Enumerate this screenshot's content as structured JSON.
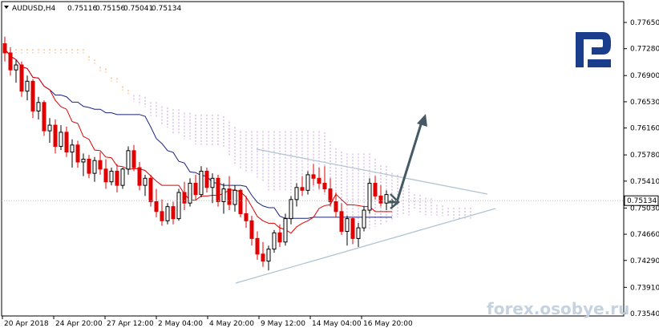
{
  "header": {
    "menu_icon": "triangle-down-icon",
    "symbol": "AUDUSD,H4",
    "open": "0.75116",
    "high": "0.75156",
    "low": "0.75041",
    "close": "0.75134"
  },
  "watermark": "forex.osobye.ru",
  "logo": {
    "icon": "broker-logo-icon",
    "color": "#1a3e8c"
  },
  "colors": {
    "bull": "#000000",
    "bear": "#e00000",
    "tenkan": "#e00000",
    "kijun": "#1a237e",
    "chikou": "#e00000",
    "cloud_bear": "#c9a0d8",
    "cloud_bull": "#f5a64c",
    "triangle": "#b0c4d2",
    "arrow": "#455a64",
    "watermark": "#c5d3e0",
    "price_label_bg": "#ffffff"
  },
  "chart_data": {
    "type": "candlestick",
    "title": "AUDUSD,H4",
    "y_axis_ticks": [
      "0.77650",
      "0.77280",
      "0.76900",
      "0.76530",
      "0.76160",
      "0.75780",
      "0.75410",
      "0.75030",
      "0.74660",
      "0.74290",
      "0.73910",
      "0.73540"
    ],
    "ylim": [
      0.7354,
      0.7765
    ],
    "current_price": "0.75134",
    "x_axis_labels": [
      "20 Apr 2018",
      "24 Apr 20:00",
      "27 Apr 12:00",
      "2 May 04:00",
      "4 May 20:00",
      "9 May 12:00",
      "14 May 04:00",
      "16 May 20:00"
    ],
    "candles": [
      [
        0.7735,
        0.7745,
        0.771,
        0.7722
      ],
      [
        0.7722,
        0.773,
        0.769,
        0.7698
      ],
      [
        0.7698,
        0.7712,
        0.768,
        0.7705
      ],
      [
        0.7705,
        0.771,
        0.766,
        0.7668
      ],
      [
        0.7668,
        0.769,
        0.7655,
        0.7682
      ],
      [
        0.7682,
        0.7685,
        0.763,
        0.764
      ],
      [
        0.764,
        0.766,
        0.7628,
        0.7652
      ],
      [
        0.7652,
        0.7655,
        0.7605,
        0.7612
      ],
      [
        0.7612,
        0.763,
        0.7595,
        0.762
      ],
      [
        0.762,
        0.7628,
        0.758,
        0.759
      ],
      [
        0.759,
        0.762,
        0.7585,
        0.761
      ],
      [
        0.761,
        0.7618,
        0.7575,
        0.7582
      ],
      [
        0.7582,
        0.76,
        0.756,
        0.7592
      ],
      [
        0.7592,
        0.7598,
        0.756,
        0.7568
      ],
      [
        0.7568,
        0.758,
        0.7548,
        0.7572
      ],
      [
        0.7572,
        0.7578,
        0.7545,
        0.7552
      ],
      [
        0.7552,
        0.7575,
        0.754,
        0.757
      ],
      [
        0.757,
        0.7582,
        0.755,
        0.7558
      ],
      [
        0.7558,
        0.7572,
        0.753,
        0.754
      ],
      [
        0.754,
        0.756,
        0.7535,
        0.7555
      ],
      [
        0.7555,
        0.7565,
        0.7525,
        0.7535
      ],
      [
        0.7535,
        0.756,
        0.753,
        0.7558
      ],
      [
        0.7558,
        0.759,
        0.755,
        0.7584
      ],
      [
        0.7584,
        0.7592,
        0.7555,
        0.756
      ],
      [
        0.756,
        0.7568,
        0.7528,
        0.7535
      ],
      [
        0.7535,
        0.755,
        0.752,
        0.7545
      ],
      [
        0.7545,
        0.755,
        0.7505,
        0.7512
      ],
      [
        0.7512,
        0.753,
        0.749,
        0.7498
      ],
      [
        0.7498,
        0.7515,
        0.7478,
        0.7485
      ],
      [
        0.7485,
        0.751,
        0.748,
        0.7505
      ],
      [
        0.7505,
        0.7512,
        0.748,
        0.7488
      ],
      [
        0.7488,
        0.753,
        0.7485,
        0.7525
      ],
      [
        0.7525,
        0.754,
        0.75,
        0.751
      ],
      [
        0.751,
        0.7545,
        0.7505,
        0.7538
      ],
      [
        0.7538,
        0.755,
        0.7515,
        0.7522
      ],
      [
        0.7522,
        0.7562,
        0.7518,
        0.7555
      ],
      [
        0.7555,
        0.756,
        0.7525,
        0.7532
      ],
      [
        0.7532,
        0.7552,
        0.751,
        0.7545
      ],
      [
        0.7545,
        0.755,
        0.7505,
        0.7512
      ],
      [
        0.7512,
        0.7538,
        0.7495,
        0.753
      ],
      [
        0.753,
        0.7548,
        0.75,
        0.7508
      ],
      [
        0.7508,
        0.7535,
        0.7498,
        0.7528
      ],
      [
        0.7528,
        0.753,
        0.749,
        0.7495
      ],
      [
        0.7495,
        0.752,
        0.7475,
        0.7485
      ],
      [
        0.7485,
        0.7492,
        0.745,
        0.746
      ],
      [
        0.746,
        0.747,
        0.743,
        0.7438
      ],
      [
        0.7438,
        0.7455,
        0.742,
        0.7428
      ],
      [
        0.7428,
        0.745,
        0.7415,
        0.7445
      ],
      [
        0.7445,
        0.7472,
        0.744,
        0.7468
      ],
      [
        0.7468,
        0.748,
        0.7448,
        0.7455
      ],
      [
        0.7455,
        0.7495,
        0.745,
        0.7488
      ],
      [
        0.7488,
        0.752,
        0.748,
        0.7515
      ],
      [
        0.7515,
        0.7538,
        0.7505,
        0.7532
      ],
      [
        0.7532,
        0.7548,
        0.752,
        0.7528
      ],
      [
        0.7528,
        0.7555,
        0.7522,
        0.755
      ],
      [
        0.755,
        0.7565,
        0.7535,
        0.7545
      ],
      [
        0.7545,
        0.756,
        0.753,
        0.7538
      ],
      [
        0.7538,
        0.7562,
        0.7525,
        0.753
      ],
      [
        0.753,
        0.7545,
        0.7505,
        0.7512
      ],
      [
        0.7512,
        0.7525,
        0.749,
        0.7498
      ],
      [
        0.7498,
        0.751,
        0.7465,
        0.747
      ],
      [
        0.747,
        0.7492,
        0.745,
        0.7488
      ],
      [
        0.7488,
        0.749,
        0.7452,
        0.746
      ],
      [
        0.746,
        0.7482,
        0.7448,
        0.7475
      ],
      [
        0.7475,
        0.7505,
        0.747,
        0.75
      ],
      [
        0.75,
        0.7545,
        0.7495,
        0.7538
      ],
      [
        0.7538,
        0.7548,
        0.7515,
        0.752
      ],
      [
        0.752,
        0.7535,
        0.7505,
        0.751
      ],
      [
        0.751,
        0.7528,
        0.75,
        0.7522
      ],
      [
        0.7512,
        0.7516,
        0.7504,
        0.7513
      ]
    ]
  }
}
